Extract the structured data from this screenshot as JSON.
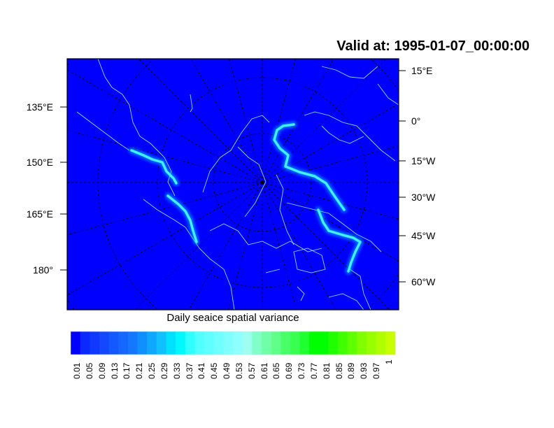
{
  "title": "Valid at: 1995-01-07_00:00:00",
  "colorbar_title": "Daily seaice spatial variance",
  "left_lon_labels": [
    "135°E",
    "150°E",
    "165°E",
    "180°"
  ],
  "right_lon_labels": [
    "15°E",
    "0°",
    "15°W",
    "30°W",
    "45°W",
    "60°W"
  ],
  "colorbar_labels": [
    "0.01",
    "0.05",
    "0.09",
    "0.13",
    "0.17",
    "0.21",
    "0.25",
    "0.29",
    "0.33",
    "0.37",
    "0.41",
    "0.45",
    "0.49",
    "0.53",
    "0.57",
    "0.61",
    "0.65",
    "0.69",
    "0.73",
    "0.77",
    "0.81",
    "0.85",
    "0.89",
    "0.93",
    "0.97",
    "1"
  ],
  "colorbar_colors": [
    "#0000ff",
    "#0a28ff",
    "#1038ff",
    "#1448ff",
    "#1458ff",
    "#1468ff",
    "#1478ff",
    "#1090ff",
    "#10a8ff",
    "#10c0ff",
    "#00e0ff",
    "#00f8ff",
    "#30ffff",
    "#50ffff",
    "#60ffff",
    "#70ffff",
    "#80ffff",
    "#90ffff",
    "#9cfff0",
    "#80ffc8",
    "#70ffa8",
    "#60ff88",
    "#48ff68",
    "#38ff50",
    "#20ff30",
    "#00ff00",
    "#00ff00",
    "#20ff00",
    "#40ff00",
    "#60ff00",
    "#80ff00",
    "#98ff00",
    "#b0ff00",
    "#c8ff00"
  ],
  "map_background": "#0000ff",
  "coast_color": "#80e0ff",
  "ice_edge_color": "#40f0ff"
}
